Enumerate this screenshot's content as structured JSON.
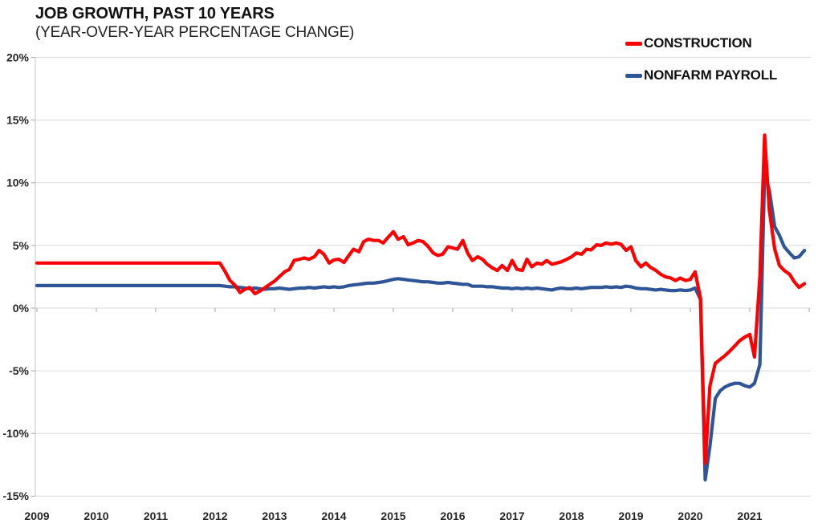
{
  "header": {
    "title": "JOB GROWTH, PAST 10 YEARS",
    "subtitle": "(YEAR-OVER-YEAR PERCENTAGE CHANGE)"
  },
  "legend": [
    {
      "label": "CONSTRUCTION",
      "color": "#fe0000"
    },
    {
      "label": "NONFARM PAYROLL",
      "color": "#2e5596"
    }
  ],
  "colors": {
    "construction_line": "#fe0000",
    "nonfarm_line": "#2e5596",
    "gridline": "#d9d9d9",
    "axis_line": "#c6c6c6",
    "tick_mark": "#a6a6a6",
    "label_text": "#262626"
  },
  "chart_data": {
    "type": "line",
    "title": "JOB GROWTH, PAST 10 YEARS",
    "subtitle": "(YEAR-OVER-YEAR PERCENTAGE CHANGE)",
    "xlabel": "",
    "ylabel": "",
    "grid": "horizontal",
    "legend_position": "top-right",
    "xlim": [
      2009,
      2022.05
    ],
    "ylim": [
      -15,
      20
    ],
    "x_tick_labels": [
      "2009",
      "2010",
      "2011",
      "2012",
      "2013",
      "2014",
      "2015",
      "2016",
      "2017",
      "2018",
      "2019",
      "2020",
      "2021"
    ],
    "x_tick_years": [
      2009,
      2010,
      2011,
      2012,
      2013,
      2014,
      2015,
      2016,
      2017,
      2018,
      2019,
      2020,
      2021
    ],
    "y_ticks": {
      "values": [
        20,
        15,
        10,
        5,
        0,
        -5,
        -10,
        -15
      ],
      "labels": [
        "20%",
        "15%",
        "10%",
        "5%",
        "0%",
        "-5%",
        "-10%",
        "-15%"
      ]
    },
    "units": "percent year-over-year",
    "series": [
      {
        "name": "CONSTRUCTION",
        "color": "#fe0000",
        "points": [
          [
            2009,
            3.6
          ],
          [
            2009.5,
            3.6
          ],
          [
            2010,
            3.6
          ],
          [
            2010.5,
            3.6
          ],
          [
            2011,
            3.6
          ],
          [
            2011.5,
            3.6
          ],
          [
            2012,
            3.6
          ],
          [
            2012.08,
            3.6
          ],
          [
            2012.17,
            2.9
          ],
          [
            2012.25,
            2.2
          ],
          [
            2012.33,
            1.85
          ],
          [
            2012.42,
            1.25
          ],
          [
            2012.5,
            1.5
          ],
          [
            2012.58,
            1.65
          ],
          [
            2012.67,
            1.15
          ],
          [
            2012.75,
            1.35
          ],
          [
            2012.83,
            1.6
          ],
          [
            2012.92,
            1.9
          ],
          [
            2013,
            2.15
          ],
          [
            2013.08,
            2.5
          ],
          [
            2013.17,
            2.9
          ],
          [
            2013.25,
            3.1
          ],
          [
            2013.33,
            3.8
          ],
          [
            2013.42,
            3.9
          ],
          [
            2013.5,
            4.0
          ],
          [
            2013.58,
            3.9
          ],
          [
            2013.67,
            4.1
          ],
          [
            2013.75,
            4.6
          ],
          [
            2013.83,
            4.3
          ],
          [
            2013.92,
            3.6
          ],
          [
            2014,
            3.85
          ],
          [
            2014.08,
            3.9
          ],
          [
            2014.17,
            3.65
          ],
          [
            2014.25,
            4.2
          ],
          [
            2014.33,
            4.7
          ],
          [
            2014.42,
            4.5
          ],
          [
            2014.5,
            5.3
          ],
          [
            2014.58,
            5.5
          ],
          [
            2014.67,
            5.4
          ],
          [
            2014.75,
            5.4
          ],
          [
            2014.83,
            5.2
          ],
          [
            2014.92,
            5.7
          ],
          [
            2015,
            6.1
          ],
          [
            2015.08,
            5.5
          ],
          [
            2015.17,
            5.7
          ],
          [
            2015.25,
            5.05
          ],
          [
            2015.33,
            5.2
          ],
          [
            2015.42,
            5.4
          ],
          [
            2015.5,
            5.3
          ],
          [
            2015.58,
            4.95
          ],
          [
            2015.67,
            4.4
          ],
          [
            2015.75,
            4.2
          ],
          [
            2015.83,
            4.3
          ],
          [
            2015.92,
            4.9
          ],
          [
            2016,
            4.8
          ],
          [
            2016.08,
            4.7
          ],
          [
            2016.17,
            5.4
          ],
          [
            2016.25,
            4.4
          ],
          [
            2016.33,
            3.8
          ],
          [
            2016.42,
            4.1
          ],
          [
            2016.5,
            3.9
          ],
          [
            2016.58,
            3.5
          ],
          [
            2016.67,
            3.2
          ],
          [
            2016.75,
            3.0
          ],
          [
            2016.83,
            3.4
          ],
          [
            2016.92,
            3.0
          ],
          [
            2017,
            3.8
          ],
          [
            2017.08,
            3.1
          ],
          [
            2017.17,
            3.0
          ],
          [
            2017.25,
            3.9
          ],
          [
            2017.33,
            3.3
          ],
          [
            2017.42,
            3.6
          ],
          [
            2017.5,
            3.5
          ],
          [
            2017.58,
            3.8
          ],
          [
            2017.67,
            3.5
          ],
          [
            2017.75,
            3.6
          ],
          [
            2017.83,
            3.7
          ],
          [
            2017.92,
            3.9
          ],
          [
            2018,
            4.1
          ],
          [
            2018.08,
            4.4
          ],
          [
            2018.17,
            4.3
          ],
          [
            2018.25,
            4.7
          ],
          [
            2018.33,
            4.65
          ],
          [
            2018.42,
            5.05
          ],
          [
            2018.5,
            5.0
          ],
          [
            2018.58,
            5.2
          ],
          [
            2018.67,
            5.1
          ],
          [
            2018.75,
            5.2
          ],
          [
            2018.83,
            5.1
          ],
          [
            2018.92,
            4.6
          ],
          [
            2019,
            4.9
          ],
          [
            2019.08,
            3.8
          ],
          [
            2019.17,
            3.3
          ],
          [
            2019.25,
            3.6
          ],
          [
            2019.33,
            3.25
          ],
          [
            2019.42,
            3.0
          ],
          [
            2019.5,
            2.7
          ],
          [
            2019.58,
            2.5
          ],
          [
            2019.67,
            2.4
          ],
          [
            2019.75,
            2.2
          ],
          [
            2019.83,
            2.4
          ],
          [
            2019.92,
            2.2
          ],
          [
            2020,
            2.3
          ],
          [
            2020.08,
            2.9
          ],
          [
            2020.17,
            0.8
          ],
          [
            2020.25,
            -12.4
          ],
          [
            2020.33,
            -6.2
          ],
          [
            2020.42,
            -4.4
          ],
          [
            2020.5,
            -4.1
          ],
          [
            2020.58,
            -3.8
          ],
          [
            2020.67,
            -3.4
          ],
          [
            2020.75,
            -3.0
          ],
          [
            2020.83,
            -2.6
          ],
          [
            2020.92,
            -2.3
          ],
          [
            2021,
            -2.1
          ],
          [
            2021.08,
            -3.9
          ],
          [
            2021.17,
            2.5
          ],
          [
            2021.25,
            13.8
          ],
          [
            2021.33,
            7.8
          ],
          [
            2021.42,
            4.7
          ],
          [
            2021.5,
            3.4
          ],
          [
            2021.58,
            3.0
          ],
          [
            2021.67,
            2.7
          ],
          [
            2021.75,
            2.1
          ],
          [
            2021.83,
            1.65
          ],
          [
            2021.92,
            1.95
          ]
        ]
      },
      {
        "name": "NONFARM PAYROLL",
        "color": "#2e5596",
        "points": [
          [
            2009,
            1.8
          ],
          [
            2009.5,
            1.8
          ],
          [
            2010,
            1.8
          ],
          [
            2010.5,
            1.8
          ],
          [
            2011,
            1.8
          ],
          [
            2011.5,
            1.8
          ],
          [
            2012,
            1.8
          ],
          [
            2012.08,
            1.8
          ],
          [
            2012.17,
            1.75
          ],
          [
            2012.25,
            1.7
          ],
          [
            2012.33,
            1.7
          ],
          [
            2012.42,
            1.65
          ],
          [
            2012.5,
            1.6
          ],
          [
            2012.58,
            1.55
          ],
          [
            2012.67,
            1.6
          ],
          [
            2012.75,
            1.55
          ],
          [
            2012.83,
            1.5
          ],
          [
            2012.92,
            1.55
          ],
          [
            2013,
            1.55
          ],
          [
            2013.08,
            1.6
          ],
          [
            2013.17,
            1.55
          ],
          [
            2013.25,
            1.5
          ],
          [
            2013.33,
            1.55
          ],
          [
            2013.42,
            1.6
          ],
          [
            2013.5,
            1.6
          ],
          [
            2013.58,
            1.65
          ],
          [
            2013.67,
            1.6
          ],
          [
            2013.75,
            1.65
          ],
          [
            2013.83,
            1.7
          ],
          [
            2013.92,
            1.65
          ],
          [
            2014,
            1.7
          ],
          [
            2014.08,
            1.65
          ],
          [
            2014.17,
            1.7
          ],
          [
            2014.25,
            1.8
          ],
          [
            2014.33,
            1.85
          ],
          [
            2014.42,
            1.9
          ],
          [
            2014.5,
            1.95
          ],
          [
            2014.58,
            2.0
          ],
          [
            2014.67,
            2.0
          ],
          [
            2014.75,
            2.05
          ],
          [
            2014.83,
            2.1
          ],
          [
            2014.92,
            2.2
          ],
          [
            2015,
            2.3
          ],
          [
            2015.08,
            2.35
          ],
          [
            2015.17,
            2.3
          ],
          [
            2015.25,
            2.25
          ],
          [
            2015.33,
            2.2
          ],
          [
            2015.42,
            2.15
          ],
          [
            2015.5,
            2.1
          ],
          [
            2015.58,
            2.1
          ],
          [
            2015.67,
            2.05
          ],
          [
            2015.75,
            2.0
          ],
          [
            2015.83,
            2.0
          ],
          [
            2015.92,
            2.05
          ],
          [
            2016,
            2.0
          ],
          [
            2016.08,
            1.95
          ],
          [
            2016.17,
            1.9
          ],
          [
            2016.25,
            1.9
          ],
          [
            2016.33,
            1.75
          ],
          [
            2016.42,
            1.75
          ],
          [
            2016.5,
            1.75
          ],
          [
            2016.58,
            1.7
          ],
          [
            2016.67,
            1.7
          ],
          [
            2016.75,
            1.65
          ],
          [
            2016.83,
            1.6
          ],
          [
            2016.92,
            1.6
          ],
          [
            2017,
            1.55
          ],
          [
            2017.08,
            1.6
          ],
          [
            2017.17,
            1.55
          ],
          [
            2017.25,
            1.6
          ],
          [
            2017.33,
            1.55
          ],
          [
            2017.42,
            1.6
          ],
          [
            2017.5,
            1.55
          ],
          [
            2017.58,
            1.5
          ],
          [
            2017.67,
            1.45
          ],
          [
            2017.75,
            1.55
          ],
          [
            2017.83,
            1.6
          ],
          [
            2017.92,
            1.55
          ],
          [
            2018,
            1.55
          ],
          [
            2018.08,
            1.6
          ],
          [
            2018.17,
            1.55
          ],
          [
            2018.25,
            1.6
          ],
          [
            2018.33,
            1.65
          ],
          [
            2018.42,
            1.65
          ],
          [
            2018.5,
            1.65
          ],
          [
            2018.58,
            1.7
          ],
          [
            2018.67,
            1.65
          ],
          [
            2018.75,
            1.7
          ],
          [
            2018.83,
            1.65
          ],
          [
            2018.92,
            1.75
          ],
          [
            2019,
            1.7
          ],
          [
            2019.08,
            1.6
          ],
          [
            2019.17,
            1.55
          ],
          [
            2019.25,
            1.55
          ],
          [
            2019.33,
            1.5
          ],
          [
            2019.42,
            1.45
          ],
          [
            2019.5,
            1.5
          ],
          [
            2019.58,
            1.45
          ],
          [
            2019.67,
            1.4
          ],
          [
            2019.75,
            1.4
          ],
          [
            2019.83,
            1.45
          ],
          [
            2019.92,
            1.4
          ],
          [
            2020,
            1.45
          ],
          [
            2020.08,
            1.6
          ],
          [
            2020.17,
            0.7
          ],
          [
            2020.25,
            -13.7
          ],
          [
            2020.33,
            -11.0
          ],
          [
            2020.42,
            -7.2
          ],
          [
            2020.5,
            -6.6
          ],
          [
            2020.58,
            -6.3
          ],
          [
            2020.67,
            -6.1
          ],
          [
            2020.75,
            -6.0
          ],
          [
            2020.83,
            -6.0
          ],
          [
            2020.92,
            -6.2
          ],
          [
            2021,
            -6.3
          ],
          [
            2021.08,
            -6.0
          ],
          [
            2021.17,
            -4.5
          ],
          [
            2021.25,
            10.8
          ],
          [
            2021.33,
            9.4
          ],
          [
            2021.42,
            6.5
          ],
          [
            2021.5,
            5.8
          ],
          [
            2021.58,
            4.9
          ],
          [
            2021.67,
            4.4
          ],
          [
            2021.75,
            4.0
          ],
          [
            2021.83,
            4.1
          ],
          [
            2021.92,
            4.6
          ]
        ]
      }
    ]
  }
}
